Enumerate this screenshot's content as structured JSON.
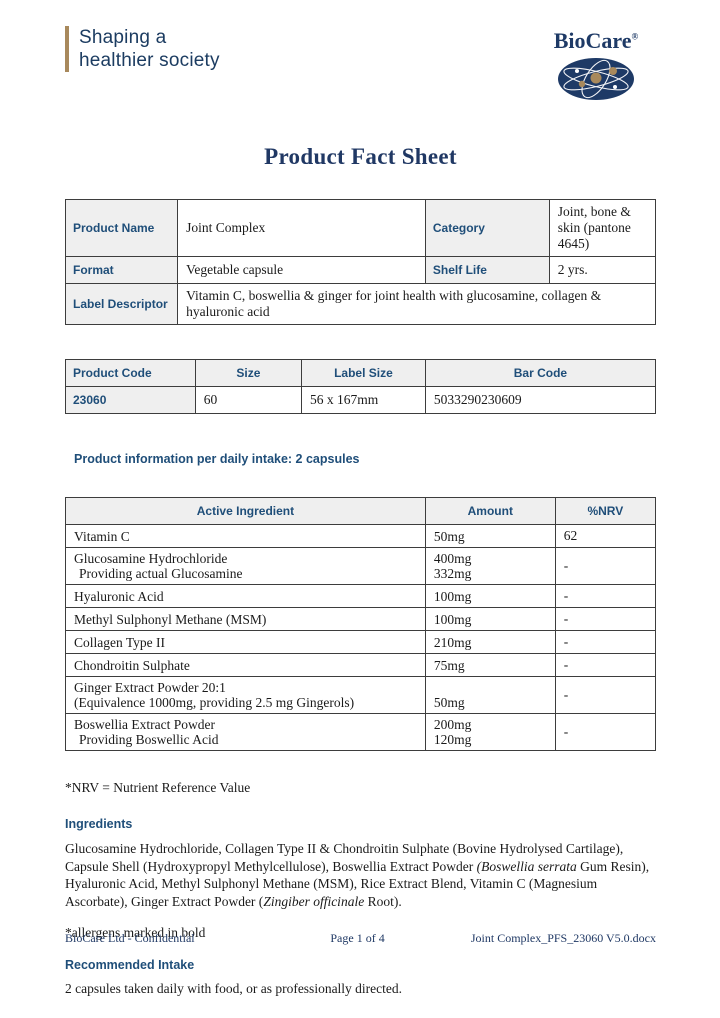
{
  "brand": {
    "tagline_line1": "Shaping a",
    "tagline_line2": "healthier society",
    "logo_text": "BioCare",
    "logo_reg": "®"
  },
  "title": "Product Fact Sheet",
  "info_table": {
    "r1": {
      "label1": "Product Name",
      "value1": "Joint Complex",
      "label2": "Category",
      "value2": "Joint, bone & skin (pantone 4645)"
    },
    "r2": {
      "label1": "Format",
      "value1": "Vegetable capsule",
      "label2": "Shelf Life",
      "value2": "2 yrs."
    },
    "r3": {
      "label1": "Label Descriptor",
      "value": "Vitamin C, boswellia & ginger for joint health with glucosamine, collagen & hyaluronic acid"
    }
  },
  "code_table": {
    "headers": {
      "h1": "Product Code",
      "h2": "Size",
      "h3": "Label Size",
      "h4": "Bar Code"
    },
    "row": {
      "code": "23060",
      "size": "60",
      "label_size": "56 x 167mm",
      "bar_code": "5033290230609"
    }
  },
  "intake_heading": "Product information per daily intake: 2 capsules",
  "ingredients_table": {
    "headers": {
      "h1": "Active Ingredient",
      "h2": "Amount",
      "h3": "%NRV"
    },
    "rows": [
      {
        "ingredient": "Vitamin C",
        "amount": "50mg",
        "nrv": "62"
      },
      {
        "ingredient": "Glucosamine Hydrochloride",
        "ingredient2": "Providing actual Glucosamine",
        "amount": "400mg",
        "amount2": "332mg",
        "nrv": "-"
      },
      {
        "ingredient": "Hyaluronic Acid",
        "amount": "100mg",
        "nrv": "-"
      },
      {
        "ingredient": "Methyl Sulphonyl Methane (MSM)",
        "amount": "100mg",
        "nrv": "-"
      },
      {
        "ingredient": "Collagen Type II",
        "amount": "210mg",
        "nrv": "-"
      },
      {
        "ingredient": "Chondroitin Sulphate",
        "amount": "75mg",
        "nrv": "-"
      },
      {
        "ingredient": "Ginger Extract Powder 20:1",
        "ingredient2": "(Equivalence 1000mg, providing 2.5 mg Gingerols)",
        "amount": "",
        "amount2": "50mg",
        "nrv": "-"
      },
      {
        "ingredient": "Boswellia Extract Powder",
        "ingredient2": "Providing Boswellic Acid",
        "amount": "200mg",
        "amount2": "120mg",
        "nrv": "-"
      }
    ]
  },
  "nrv_note": "*NRV = Nutrient Reference Value",
  "ingredients_section": {
    "heading": "Ingredients",
    "paragraph": [
      {
        "text": "Glucosamine Hydrochloride, Collagen Type II & Chondroitin Sulphate (Bovine Hydrolysed Cartilage), Capsule Shell (Hydroxypropyl Methylcellulose), Boswellia Extract Powder ",
        "style": "normal"
      },
      {
        "text": "(Boswellia serrata",
        "style": "italic"
      },
      {
        "text": " Gum Resin), Hyaluronic Acid, Methyl Sulphonyl Methane (MSM), Rice Extract Blend, Vitamin C (Magnesium Ascorbate), Ginger Extract Powder (",
        "style": "normal"
      },
      {
        "text": "Zingiber officinale",
        "style": "italic"
      },
      {
        "text": " Root).",
        "style": "normal"
      }
    ],
    "allergen_note": "*allergens marked in bold"
  },
  "recommended": {
    "heading": "Recommended Intake",
    "text": "2 capsules taken daily with food, or as professionally directed."
  },
  "footer": {
    "left": "BioCare Ltd - Confidential",
    "center": "Page 1 of 4",
    "right": "Joint Complex_PFS_23060 V5.0.docx"
  },
  "colors": {
    "navy_accent": "#1f4e79",
    "navy_title": "#203864",
    "navy_logo": "#1e3a66",
    "tan": "#a8895c",
    "cell_gray": "#efefef",
    "border": "#3d3d3d"
  }
}
